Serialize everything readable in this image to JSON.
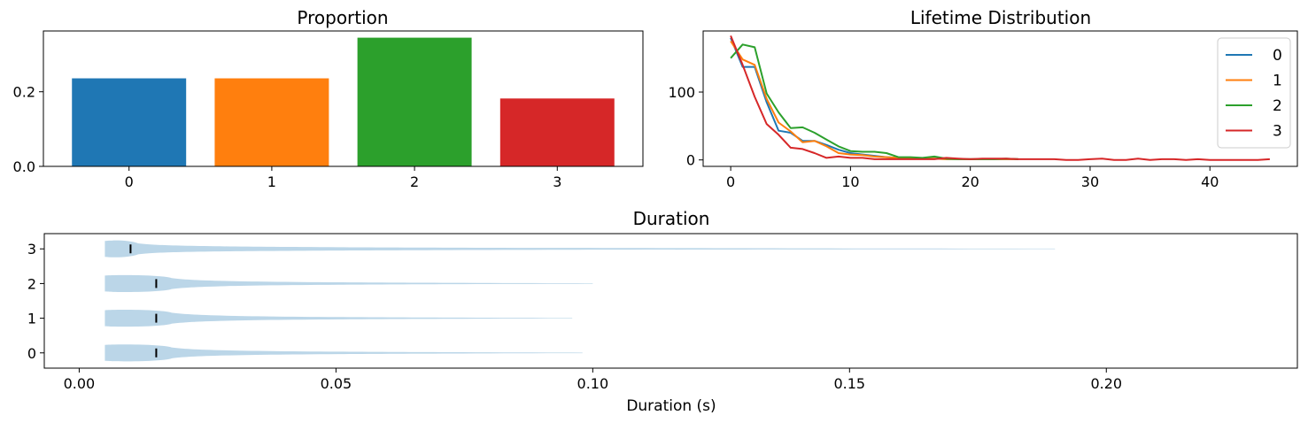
{
  "chart_data": [
    {
      "type": "bar",
      "title": "Proportion",
      "categories": [
        "0",
        "1",
        "2",
        "3"
      ],
      "values": [
        0.236,
        0.236,
        0.345,
        0.182
      ],
      "colors": [
        "#1f77b4",
        "#ff7f0e",
        "#2ca02c",
        "#d62728"
      ],
      "ylim": [
        0,
        0.363
      ],
      "yticks": [
        0.0,
        0.2
      ],
      "ytick_labels": [
        "0.0",
        "0.2"
      ]
    },
    {
      "type": "line",
      "title": "Lifetime Distribution",
      "xlim": [
        -2.3,
        47.3
      ],
      "ylim": [
        -9.5,
        190
      ],
      "xticks": [
        0,
        10,
        20,
        30,
        40
      ],
      "yticks": [
        0,
        100
      ],
      "legend_position": "top-right",
      "series": [
        {
          "name": "0",
          "color": "#1f77b4",
          "x": [
            0,
            1,
            2,
            3,
            4,
            5,
            6,
            7,
            8,
            9,
            10,
            11,
            12,
            13,
            14,
            15,
            16,
            17,
            18,
            19,
            20,
            21,
            22,
            23,
            24
          ],
          "y": [
            180,
            137,
            137,
            85,
            43,
            40,
            28,
            28,
            22,
            15,
            10,
            8,
            6,
            4,
            3,
            2,
            2,
            2,
            1,
            1,
            1,
            1,
            1,
            1,
            1
          ]
        },
        {
          "name": "1",
          "color": "#ff7f0e",
          "x": [
            0,
            1,
            2,
            3,
            4,
            5,
            6,
            7,
            8,
            9,
            10,
            11,
            12,
            13,
            14,
            15,
            16,
            17,
            18,
            19,
            20,
            21,
            22,
            23,
            24
          ],
          "y": [
            175,
            148,
            140,
            90,
            55,
            42,
            26,
            28,
            20,
            10,
            8,
            7,
            5,
            4,
            3,
            2,
            2,
            2,
            1,
            1,
            1,
            1,
            1,
            1,
            1
          ]
        },
        {
          "name": "2",
          "color": "#2ca02c",
          "x": [
            0,
            1,
            2,
            3,
            4,
            5,
            6,
            7,
            8,
            9,
            10,
            11,
            12,
            13,
            14,
            15,
            16,
            17,
            18,
            19,
            20,
            21,
            22,
            23,
            24
          ],
          "y": [
            150,
            170,
            166,
            98,
            70,
            47,
            48,
            40,
            30,
            20,
            13,
            12,
            12,
            10,
            4,
            4,
            3,
            5,
            2,
            1,
            1,
            1,
            1,
            2,
            1
          ]
        },
        {
          "name": "3",
          "color": "#d62728",
          "x": [
            0,
            1,
            2,
            3,
            4,
            5,
            6,
            7,
            8,
            9,
            10,
            11,
            12,
            13,
            14,
            15,
            16,
            17,
            18,
            19,
            20,
            21,
            22,
            23,
            24,
            25,
            26,
            27,
            28,
            29,
            30,
            31,
            32,
            33,
            34,
            35,
            36,
            37,
            38,
            39,
            40,
            41,
            42,
            43,
            44,
            45
          ],
          "y": [
            183,
            140,
            93,
            53,
            37,
            18,
            16,
            10,
            3,
            5,
            3,
            3,
            1,
            1,
            1,
            1,
            1,
            1,
            3,
            2,
            1,
            2,
            2,
            2,
            1,
            1,
            1,
            1,
            0,
            0,
            1,
            2,
            0,
            0,
            2,
            0,
            1,
            1,
            0,
            1,
            0,
            0,
            0,
            0,
            0,
            1
          ]
        }
      ]
    },
    {
      "type": "violin",
      "title": "Duration",
      "xlabel": "Duration (s)",
      "xlim": [
        -0.0068,
        0.2372
      ],
      "xticks": [
        0.0,
        0.05,
        0.1,
        0.15,
        0.2
      ],
      "xtick_labels": [
        "0.00",
        "0.05",
        "0.10",
        "0.15",
        "0.20"
      ],
      "categories": [
        "0",
        "1",
        "2",
        "3"
      ],
      "medians": [
        0.015,
        0.015,
        0.015,
        0.01
      ],
      "max": [
        0.098,
        0.096,
        0.1,
        0.19
      ],
      "min": [
        0.005,
        0.005,
        0.005,
        0.005
      ],
      "color": "#1f77b4"
    }
  ]
}
